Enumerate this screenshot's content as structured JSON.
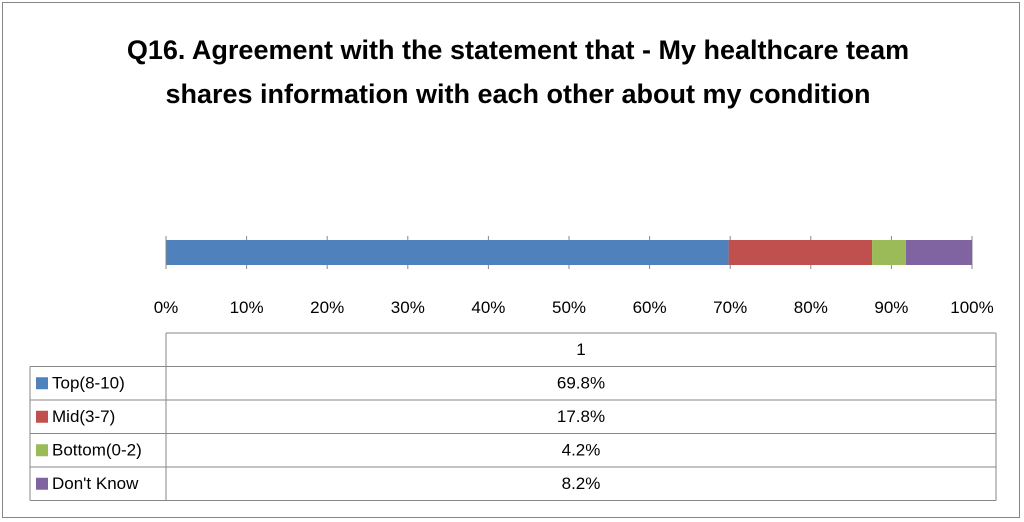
{
  "chart_data": {
    "type": "bar",
    "orientation": "horizontal",
    "stacked": true,
    "percent_stacked": true,
    "title": "Q16. Agreement with the statement that - My healthcare team shares information with each other about my condition",
    "categories": [
      "1"
    ],
    "series": [
      {
        "name": "Top(8-10)",
        "values": [
          69.8
        ],
        "label": "69.8%",
        "color": "#4F81BD"
      },
      {
        "name": "Mid(3-7)",
        "values": [
          17.8
        ],
        "label": "17.8%",
        "color": "#C0504D"
      },
      {
        "name": "Bottom(0-2)",
        "values": [
          4.2
        ],
        "label": "4.2%",
        "color": "#9BBB59"
      },
      {
        "name": "Don't Know",
        "values": [
          8.2
        ],
        "label": "8.2%",
        "color": "#8064A2"
      }
    ],
    "x_ticks": [
      "0%",
      "10%",
      "20%",
      "30%",
      "40%",
      "50%",
      "60%",
      "70%",
      "80%",
      "90%",
      "100%"
    ],
    "xlim": [
      0,
      100
    ],
    "grid": true,
    "legend": "data table below chart",
    "data_table_header": "1"
  }
}
